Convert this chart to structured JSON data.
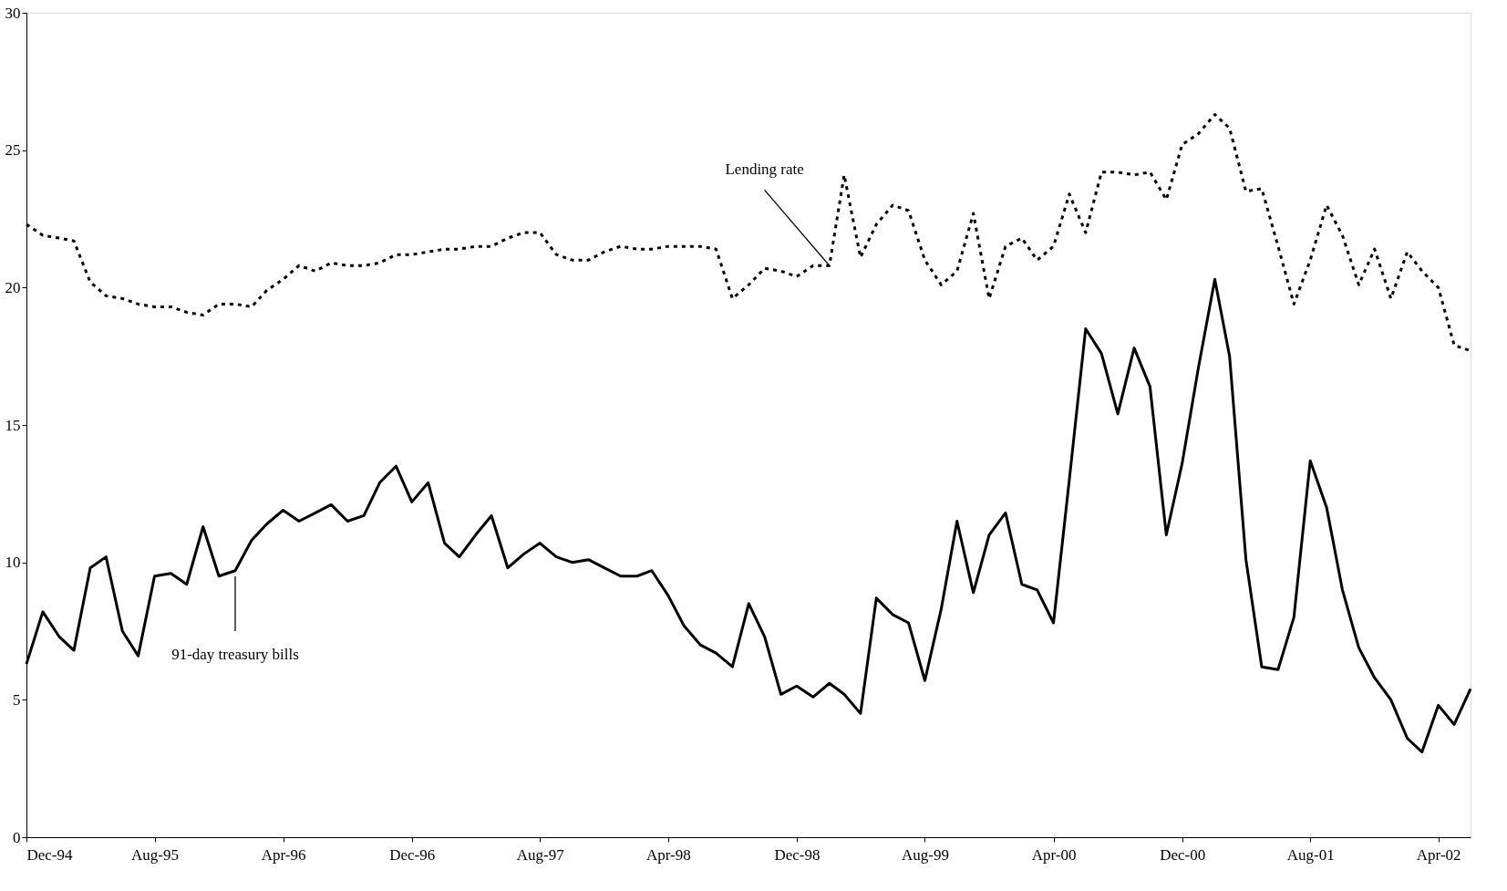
{
  "chart_data": {
    "type": "line",
    "x": [
      "1994-12",
      "1995-01",
      "1995-02",
      "1995-03",
      "1995-04",
      "1995-05",
      "1995-06",
      "1995-07",
      "1995-08",
      "1995-09",
      "1995-10",
      "1995-11",
      "1995-12",
      "1996-01",
      "1996-02",
      "1996-03",
      "1996-04",
      "1996-05",
      "1996-06",
      "1996-07",
      "1996-08",
      "1996-09",
      "1996-10",
      "1996-11",
      "1996-12",
      "1997-01",
      "1997-02",
      "1997-03",
      "1997-04",
      "1997-05",
      "1997-06",
      "1997-07",
      "1997-08",
      "1997-09",
      "1997-10",
      "1997-11",
      "1997-12",
      "1998-01",
      "1998-02",
      "1998-03",
      "1998-04",
      "1998-05",
      "1998-06",
      "1998-07",
      "1998-08",
      "1998-09",
      "1998-10",
      "1998-11",
      "1998-12",
      "1999-01",
      "1999-02",
      "1999-03",
      "1999-04",
      "1999-05",
      "1999-06",
      "1999-07",
      "1999-08",
      "1999-09",
      "1999-10",
      "1999-11",
      "1999-12",
      "2000-01",
      "2000-02",
      "2000-03",
      "2000-04",
      "2000-05",
      "2000-06",
      "2000-07",
      "2000-08",
      "2000-09",
      "2000-10",
      "2000-11",
      "2000-12",
      "2001-01",
      "2001-02",
      "2001-03",
      "2001-04",
      "2001-05",
      "2001-06",
      "2001-07",
      "2001-08",
      "2001-09",
      "2001-10",
      "2001-11",
      "2001-12",
      "2002-01",
      "2002-02",
      "2002-03",
      "2002-04",
      "2002-05",
      "2002-06"
    ],
    "series": [
      {
        "color": "#000000",
        "line_style": "dotted",
        "values": [
          22.3,
          21.9,
          21.8,
          21.7,
          20.2,
          19.7,
          19.6,
          19.4,
          19.3,
          19.3,
          19.1,
          19.0,
          19.4,
          19.4,
          19.3,
          19.9,
          20.3,
          20.8,
          20.6,
          20.9,
          20.8,
          20.8,
          20.9,
          21.2,
          21.2,
          21.3,
          21.4,
          21.4,
          21.5,
          21.5,
          21.8,
          22.0,
          22.0,
          21.2,
          21.0,
          21.0,
          21.3,
          21.5,
          21.4,
          21.4,
          21.5,
          21.5,
          21.5,
          21.4,
          19.6,
          20.1,
          20.7,
          20.6,
          20.4,
          20.8,
          20.8,
          24.1,
          21.1,
          22.3,
          23.0,
          22.8,
          21.0,
          20.1,
          20.6,
          22.7,
          19.6,
          21.5,
          21.8,
          21.0,
          21.5,
          23.4,
          22.0,
          24.2,
          24.2,
          24.1,
          24.2,
          23.2,
          25.2,
          25.6,
          26.3,
          25.8,
          23.5,
          23.6,
          21.5,
          19.4,
          21.0,
          23.0,
          21.9,
          20.1,
          21.4,
          19.6,
          21.3,
          20.6,
          20.0,
          17.9,
          17.7
        ]
      },
      {
        "color": "#000000",
        "line_style": "solid",
        "values": [
          6.3,
          8.2,
          7.3,
          6.8,
          9.8,
          10.2,
          7.5,
          6.6,
          9.5,
          9.6,
          9.2,
          11.3,
          9.5,
          9.7,
          10.8,
          11.4,
          11.9,
          11.5,
          11.8,
          12.1,
          11.5,
          11.7,
          12.9,
          13.5,
          12.2,
          12.9,
          10.7,
          10.2,
          11.0,
          11.7,
          9.8,
          10.3,
          10.7,
          10.2,
          10.0,
          10.1,
          9.8,
          9.5,
          9.5,
          9.7,
          8.8,
          7.7,
          7.0,
          6.7,
          6.2,
          8.5,
          7.3,
          5.2,
          5.5,
          5.1,
          5.6,
          5.2,
          4.5,
          8.7,
          8.1,
          7.8,
          5.7,
          8.3,
          11.5,
          8.9,
          11.0,
          11.8,
          9.2,
          9.0,
          7.8,
          13.0,
          18.5,
          17.6,
          15.4,
          17.8,
          16.4,
          11.0,
          13.6,
          17.1,
          20.3,
          17.5,
          10.1,
          6.2,
          6.1,
          8.0,
          13.7,
          12.0,
          9.0,
          6.9,
          5.8,
          5.0,
          3.6,
          3.1,
          4.8,
          4.1,
          5.4
        ]
      }
    ],
    "xlim": [
      "1994-12",
      "2002-06"
    ],
    "xticks": [
      {
        "value": "1994-12",
        "label": "Dec-94"
      },
      {
        "value": "1995-08",
        "label": "Aug-95"
      },
      {
        "value": "1996-04",
        "label": "Apr-96"
      },
      {
        "value": "1996-12",
        "label": "Dec-96"
      },
      {
        "value": "1997-08",
        "label": "Aug-97"
      },
      {
        "value": "1998-04",
        "label": "Apr-98"
      },
      {
        "value": "1998-12",
        "label": "Dec-98"
      },
      {
        "value": "1999-08",
        "label": "Aug-99"
      },
      {
        "value": "2000-04",
        "label": "Apr-00"
      },
      {
        "value": "2000-12",
        "label": "Dec-00"
      },
      {
        "value": "2001-08",
        "label": "Aug-01"
      },
      {
        "value": "2002-04",
        "label": "Apr-02"
      }
    ],
    "ylim": [
      0,
      30
    ],
    "yticks": [
      0,
      5,
      10,
      15,
      20,
      25,
      30
    ],
    "grid": false,
    "marker": "none",
    "annotations": [
      {
        "text": "Lending rate",
        "x": "1999-02",
        "y": 20.8
      },
      {
        "text": "91-day treasury bills",
        "x": "1996-01",
        "y": 9.5
      }
    ]
  }
}
